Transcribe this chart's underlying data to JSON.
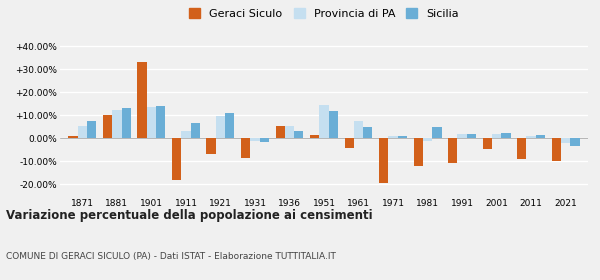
{
  "years": [
    1871,
    1881,
    1901,
    1911,
    1921,
    1931,
    1936,
    1951,
    1961,
    1971,
    1981,
    1991,
    2001,
    2011,
    2021
  ],
  "geraci": [
    1.0,
    10.0,
    33.0,
    -18.0,
    -7.0,
    -8.5,
    5.5,
    1.5,
    -4.0,
    -19.5,
    -12.0,
    -10.5,
    -4.5,
    -9.0,
    -10.0
  ],
  "provincia": [
    5.5,
    12.5,
    13.5,
    3.0,
    9.5,
    -1.0,
    5.5,
    14.5,
    7.5,
    1.0,
    -1.0,
    2.0,
    2.0,
    1.0,
    -2.0
  ],
  "sicilia": [
    7.5,
    13.0,
    14.0,
    6.5,
    11.0,
    -1.5,
    3.0,
    12.0,
    5.0,
    1.2,
    5.0,
    2.0,
    2.5,
    1.5,
    -3.5
  ],
  "geraci_color": "#d2601a",
  "provincia_color": "#c5dff0",
  "sicilia_color": "#6aaed6",
  "title": "Variazione percentuale della popolazione ai censimenti",
  "subtitle": "COMUNE DI GERACI SICULO (PA) - Dati ISTAT - Elaborazione TUTTITALIA.IT",
  "legend_labels": [
    "Geraci Siculo",
    "Provincia di PA",
    "Sicilia"
  ],
  "ylim": [
    -25,
    43
  ],
  "yticks": [
    -20,
    -10,
    0,
    10,
    20,
    30,
    40
  ],
  "background_color": "#f0f0f0",
  "grid_color": "#ffffff",
  "bar_width": 0.27
}
